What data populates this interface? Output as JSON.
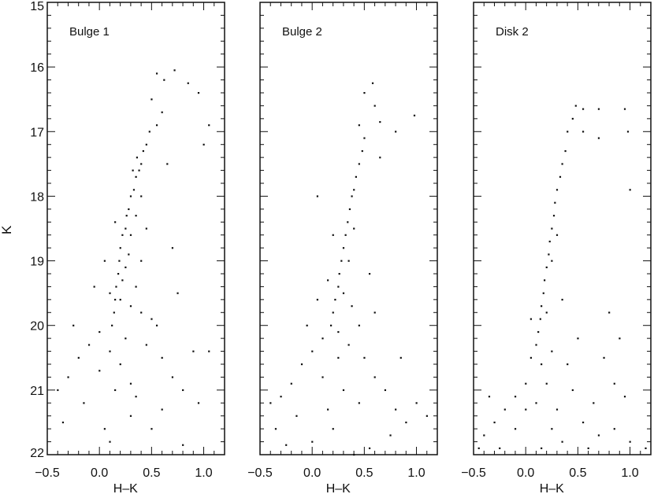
{
  "chart_data": [
    {
      "type": "scatter",
      "title": "Bulge 1",
      "xlabel": "H–K",
      "ylabel": "K",
      "xlim": [
        -0.5,
        1.2
      ],
      "ylim": [
        22,
        15
      ],
      "y_inverted": true,
      "xticks": [
        "−0.5",
        "0.0",
        "0.5",
        "1.0"
      ],
      "yticks": [
        "15",
        "16",
        "17",
        "18",
        "19",
        "20",
        "21",
        "22"
      ],
      "grid": false,
      "points": [
        [
          0.55,
          16.1
        ],
        [
          0.62,
          16.2
        ],
        [
          0.72,
          16.05
        ],
        [
          0.85,
          16.25
        ],
        [
          0.95,
          16.4
        ],
        [
          0.5,
          16.5
        ],
        [
          0.6,
          16.7
        ],
        [
          0.55,
          16.9
        ],
        [
          0.48,
          17.0
        ],
        [
          0.45,
          17.2
        ],
        [
          0.42,
          17.3
        ],
        [
          0.4,
          17.5
        ],
        [
          0.38,
          17.6
        ],
        [
          0.35,
          17.7
        ],
        [
          0.33,
          17.9
        ],
        [
          0.3,
          18.0
        ],
        [
          0.28,
          18.2
        ],
        [
          0.26,
          18.3
        ],
        [
          0.25,
          18.5
        ],
        [
          0.22,
          18.6
        ],
        [
          0.2,
          18.8
        ],
        [
          0.19,
          19.0
        ],
        [
          0.18,
          19.2
        ],
        [
          0.16,
          19.4
        ],
        [
          0.15,
          19.6
        ],
        [
          0.14,
          19.8
        ],
        [
          0.12,
          20.0
        ],
        [
          0.36,
          17.4
        ],
        [
          0.32,
          17.6
        ],
        [
          0.4,
          18.0
        ],
        [
          0.35,
          18.3
        ],
        [
          0.3,
          18.6
        ],
        [
          0.28,
          18.9
        ],
        [
          0.25,
          19.1
        ],
        [
          0.22,
          19.3
        ],
        [
          0.2,
          19.6
        ],
        [
          0.3,
          19.7
        ],
        [
          0.1,
          19.5
        ],
        [
          0.05,
          19.0
        ],
        [
          0.15,
          18.4
        ],
        [
          0.45,
          18.5
        ],
        [
          0.4,
          19.0
        ],
        [
          0.35,
          19.4
        ],
        [
          0.4,
          19.8
        ],
        [
          0.5,
          19.9
        ],
        [
          0.0,
          20.1
        ],
        [
          -0.1,
          20.3
        ],
        [
          -0.2,
          20.5
        ],
        [
          -0.3,
          20.8
        ],
        [
          -0.4,
          21.0
        ],
        [
          -0.35,
          21.5
        ],
        [
          -0.15,
          21.2
        ],
        [
          0.1,
          20.4
        ],
        [
          0.2,
          20.6
        ],
        [
          0.3,
          20.9
        ],
        [
          0.45,
          20.3
        ],
        [
          0.6,
          20.5
        ],
        [
          0.7,
          20.8
        ],
        [
          0.8,
          21.0
        ],
        [
          0.9,
          20.4
        ],
        [
          1.05,
          20.4
        ],
        [
          0.6,
          21.3
        ],
        [
          0.3,
          21.4
        ],
        [
          0.05,
          21.6
        ],
        [
          0.1,
          21.8
        ],
        [
          0.8,
          21.85
        ],
        [
          0.95,
          21.2
        ],
        [
          0.55,
          20.0
        ],
        [
          -0.05,
          19.4
        ],
        [
          0.7,
          18.8
        ],
        [
          0.65,
          17.5
        ],
        [
          1.0,
          17.2
        ],
        [
          1.05,
          16.9
        ],
        [
          0.75,
          19.5
        ],
        [
          0.0,
          20.7
        ],
        [
          -0.25,
          20.0
        ],
        [
          0.25,
          20.2
        ],
        [
          0.35,
          21.1
        ],
        [
          0.15,
          21.0
        ],
        [
          0.5,
          21.6
        ]
      ]
    },
    {
      "type": "scatter",
      "title": "Bulge 2",
      "xlabel": "H–K",
      "xlim": [
        -0.5,
        1.2
      ],
      "ylim": [
        22,
        15
      ],
      "y_inverted": true,
      "xticks": [
        "−0.5",
        "0.0",
        "0.5",
        "1.0"
      ],
      "grid": false,
      "points": [
        [
          0.58,
          16.25
        ],
        [
          0.5,
          16.4
        ],
        [
          0.6,
          16.6
        ],
        [
          0.65,
          16.85
        ],
        [
          0.98,
          16.75
        ],
        [
          0.45,
          16.9
        ],
        [
          0.5,
          17.1
        ],
        [
          0.48,
          17.3
        ],
        [
          0.45,
          17.5
        ],
        [
          0.42,
          17.7
        ],
        [
          0.4,
          17.9
        ],
        [
          0.38,
          18.0
        ],
        [
          0.36,
          18.2
        ],
        [
          0.34,
          18.4
        ],
        [
          0.32,
          18.6
        ],
        [
          0.3,
          18.8
        ],
        [
          0.28,
          19.0
        ],
        [
          0.26,
          19.2
        ],
        [
          0.25,
          19.4
        ],
        [
          0.22,
          19.6
        ],
        [
          0.2,
          19.8
        ],
        [
          0.18,
          20.0
        ],
        [
          0.4,
          18.5
        ],
        [
          0.35,
          19.0
        ],
        [
          0.3,
          19.5
        ],
        [
          0.38,
          19.7
        ],
        [
          0.15,
          19.3
        ],
        [
          0.2,
          18.6
        ],
        [
          0.1,
          20.2
        ],
        [
          0.0,
          20.4
        ],
        [
          -0.1,
          20.6
        ],
        [
          -0.2,
          20.9
        ],
        [
          -0.3,
          21.1
        ],
        [
          -0.4,
          21.2
        ],
        [
          -0.35,
          21.6
        ],
        [
          -0.15,
          21.4
        ],
        [
          0.1,
          20.8
        ],
        [
          0.25,
          20.5
        ],
        [
          0.35,
          20.3
        ],
        [
          0.5,
          20.5
        ],
        [
          0.6,
          20.8
        ],
        [
          0.7,
          21.0
        ],
        [
          0.8,
          21.3
        ],
        [
          0.9,
          21.5
        ],
        [
          1.1,
          21.4
        ],
        [
          0.45,
          21.2
        ],
        [
          0.2,
          21.6
        ],
        [
          0.0,
          21.8
        ],
        [
          0.55,
          21.9
        ],
        [
          0.75,
          21.7
        ],
        [
          0.4,
          22.0
        ],
        [
          -0.05,
          20.0
        ],
        [
          0.05,
          19.6
        ],
        [
          0.6,
          19.8
        ],
        [
          0.55,
          19.2
        ],
        [
          0.3,
          21.0
        ],
        [
          0.15,
          21.3
        ],
        [
          -0.25,
          21.85
        ],
        [
          0.65,
          17.4
        ],
        [
          0.8,
          17.0
        ],
        [
          0.05,
          18.0
        ],
        [
          0.25,
          20.1
        ],
        [
          0.45,
          20.0
        ],
        [
          1.0,
          21.2
        ],
        [
          0.85,
          20.5
        ]
      ]
    },
    {
      "type": "scatter",
      "title": "Disk 2",
      "xlabel": "H–K",
      "xlim": [
        -0.5,
        1.2
      ],
      "ylim": [
        22,
        15
      ],
      "y_inverted": true,
      "xticks": [
        "−0.5",
        "0.0",
        "0.5",
        "1.0"
      ],
      "grid": false,
      "points": [
        [
          0.48,
          16.6
        ],
        [
          0.55,
          16.65
        ],
        [
          0.7,
          16.65
        ],
        [
          0.95,
          16.65
        ],
        [
          0.45,
          16.8
        ],
        [
          0.4,
          17.0
        ],
        [
          0.55,
          17.0
        ],
        [
          0.7,
          17.1
        ],
        [
          0.98,
          17.0
        ],
        [
          0.38,
          17.3
        ],
        [
          0.35,
          17.5
        ],
        [
          0.33,
          17.7
        ],
        [
          0.3,
          17.9
        ],
        [
          0.28,
          18.1
        ],
        [
          0.27,
          18.3
        ],
        [
          0.25,
          18.5
        ],
        [
          0.23,
          18.7
        ],
        [
          0.22,
          18.9
        ],
        [
          0.2,
          19.1
        ],
        [
          0.18,
          19.3
        ],
        [
          0.17,
          19.5
        ],
        [
          0.15,
          19.7
        ],
        [
          0.14,
          19.9
        ],
        [
          0.12,
          20.1
        ],
        [
          0.1,
          20.3
        ],
        [
          0.25,
          19.0
        ],
        [
          0.3,
          18.6
        ],
        [
          0.2,
          19.8
        ],
        [
          0.05,
          20.5
        ],
        [
          0.15,
          20.6
        ],
        [
          0.2,
          20.9
        ],
        [
          0.25,
          20.4
        ],
        [
          0.35,
          19.6
        ],
        [
          0.0,
          20.9
        ],
        [
          -0.1,
          21.1
        ],
        [
          -0.2,
          21.3
        ],
        [
          -0.3,
          21.5
        ],
        [
          -0.4,
          21.7
        ],
        [
          -0.45,
          21.9
        ],
        [
          -0.25,
          21.9
        ],
        [
          -0.1,
          21.6
        ],
        [
          0.1,
          21.2
        ],
        [
          0.3,
          21.3
        ],
        [
          0.45,
          21.0
        ],
        [
          0.55,
          21.5
        ],
        [
          0.7,
          21.7
        ],
        [
          0.85,
          21.6
        ],
        [
          1.0,
          21.8
        ],
        [
          1.15,
          21.9
        ],
        [
          0.6,
          21.9
        ],
        [
          0.35,
          21.8
        ],
        [
          0.15,
          21.9
        ],
        [
          0.8,
          19.8
        ],
        [
          0.9,
          20.2
        ],
        [
          0.85,
          20.9
        ],
        [
          0.5,
          20.2
        ],
        [
          0.4,
          20.6
        ],
        [
          0.05,
          19.9
        ],
        [
          0.0,
          21.3
        ],
        [
          1.0,
          17.9
        ],
        [
          0.65,
          21.2
        ],
        [
          0.95,
          21.1
        ],
        [
          -0.35,
          21.1
        ],
        [
          0.25,
          21.6
        ],
        [
          0.75,
          20.5
        ]
      ]
    }
  ]
}
